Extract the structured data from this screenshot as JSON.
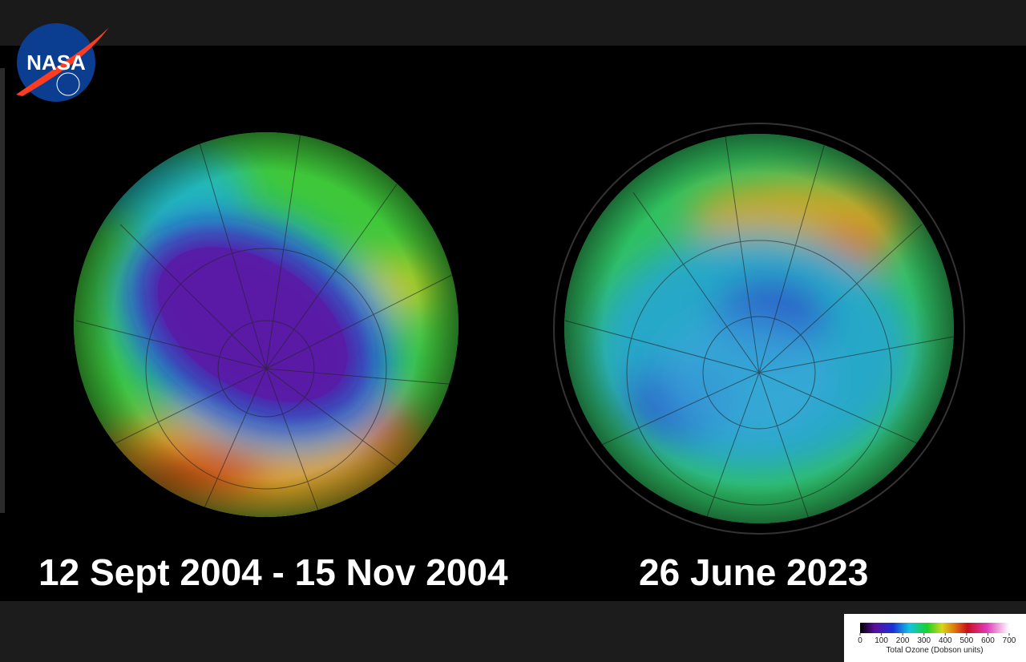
{
  "logo": {
    "text": "NASA"
  },
  "panels": [
    {
      "caption": "12 Sept 2004 - 15 Nov 2004"
    },
    {
      "caption": "26 June 2023"
    }
  ],
  "legend": {
    "title": "Total Ozone (Dobson units)",
    "ticks": [
      0,
      100,
      200,
      300,
      400,
      500,
      600,
      700
    ]
  }
}
